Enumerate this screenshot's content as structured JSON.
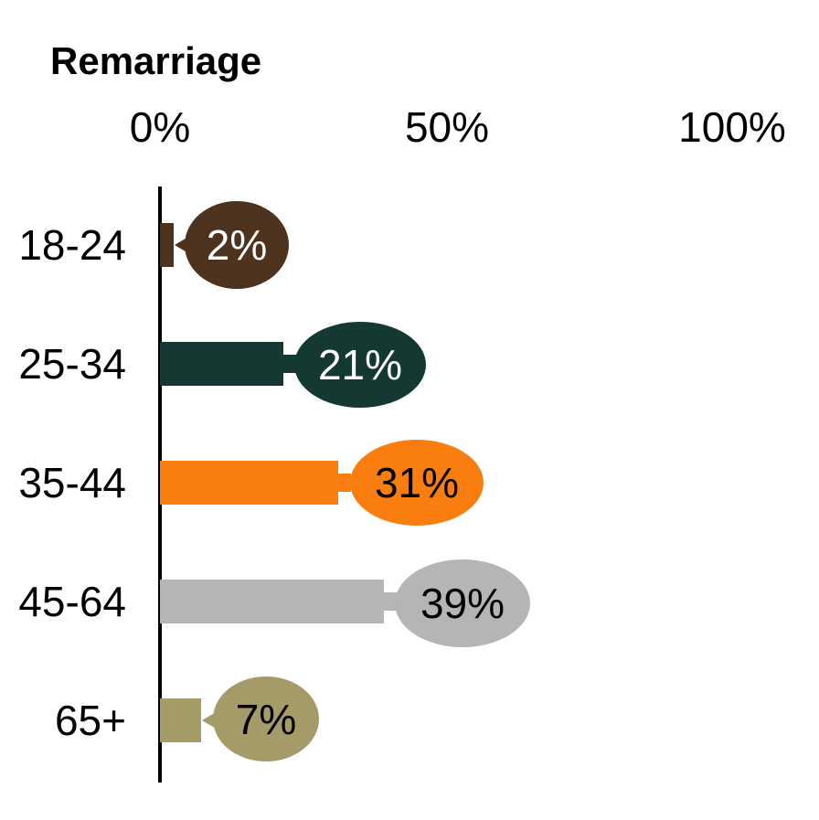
{
  "title": "Remarriage",
  "axis_ticks": [
    {
      "label": "0%"
    },
    {
      "label": "50%"
    },
    {
      "label": "100%"
    }
  ],
  "chart_data": {
    "type": "bar",
    "orientation": "horizontal",
    "title": "Remarriage",
    "categories": [
      "18-24",
      "25-34",
      "35-44",
      "45-64",
      "65+"
    ],
    "values": [
      2,
      21,
      31,
      39,
      7
    ],
    "value_labels": [
      "2%",
      "21%",
      "31%",
      "39%",
      "7%"
    ],
    "unit": "percent",
    "xlim": [
      0,
      100
    ],
    "x_tick_labels": [
      "0%",
      "50%",
      "100%"
    ],
    "grid": false,
    "legend": false,
    "style": "lollipop bars with ellipse value bubbles",
    "bar_colors": [
      "#4D321E",
      "#143832",
      "#FA7D0F",
      "#B5B5B5",
      "#A49B69"
    ],
    "value_text_colors": [
      "#FFFFFF",
      "#FFFFFF",
      "#000000",
      "#000000",
      "#000000"
    ],
    "axis_color": "#000000",
    "text_color": "#000000"
  }
}
